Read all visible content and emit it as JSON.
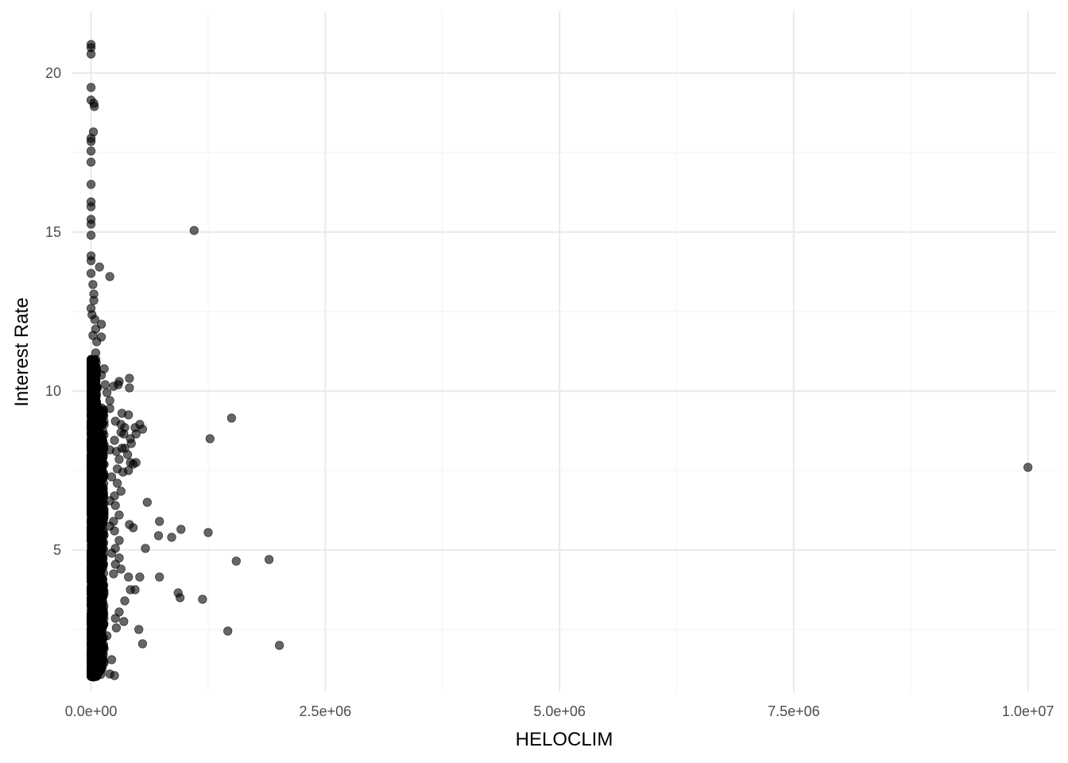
{
  "chart_data": {
    "type": "scatter",
    "xlabel": "HELOCLIM",
    "ylabel": "Interest Rate",
    "xlim": [
      -200000,
      10300000
    ],
    "ylim": [
      0.55,
      21.95
    ],
    "x_ticks": [
      0,
      2500000,
      5000000,
      7500000,
      10000000
    ],
    "x_tick_labels": [
      "0.0e+00",
      "2.5e+06",
      "5.0e+06",
      "7.5e+06",
      "1.0e+07"
    ],
    "y_ticks": [
      5,
      10,
      15,
      20
    ],
    "y_tick_labels": [
      "5",
      "10",
      "15",
      "20"
    ],
    "grid": true,
    "point_color": "#000000",
    "point_alpha": 0.6,
    "points": [
      [
        0,
        20.9
      ],
      [
        0,
        20.8
      ],
      [
        0,
        20.6
      ],
      [
        0,
        19.55
      ],
      [
        0,
        19.15
      ],
      [
        30000,
        19.05
      ],
      [
        35000,
        18.95
      ],
      [
        25000,
        18.15
      ],
      [
        0,
        17.95
      ],
      [
        0,
        17.85
      ],
      [
        0,
        17.55
      ],
      [
        0,
        17.2
      ],
      [
        0,
        16.5
      ],
      [
        0,
        15.95
      ],
      [
        0,
        15.8
      ],
      [
        0,
        15.4
      ],
      [
        0,
        15.25
      ],
      [
        0,
        14.9
      ],
      [
        0,
        14.25
      ],
      [
        0,
        14.1
      ],
      [
        0,
        13.7
      ],
      [
        20000,
        13.35
      ],
      [
        30000,
        13.05
      ],
      [
        30000,
        12.85
      ],
      [
        0,
        12.6
      ],
      [
        10000,
        12.4
      ],
      [
        40000,
        12.25
      ],
      [
        50000,
        11.95
      ],
      [
        20000,
        11.75
      ],
      [
        60000,
        11.55
      ],
      [
        50000,
        11.2
      ],
      [
        20000,
        10.95
      ],
      [
        1100000,
        15.05
      ],
      [
        200000,
        13.6
      ],
      [
        90000,
        13.9
      ],
      [
        110000,
        12.1
      ],
      [
        110000,
        11.7
      ],
      [
        140000,
        10.7
      ],
      [
        110000,
        10.5
      ],
      [
        70000,
        10.1
      ],
      [
        150000,
        10.2
      ],
      [
        170000,
        9.95
      ],
      [
        200000,
        9.7
      ],
      [
        200000,
        9.45
      ],
      [
        240000,
        10.15
      ],
      [
        290000,
        10.2
      ],
      [
        300000,
        10.3
      ],
      [
        410000,
        10.4
      ],
      [
        410000,
        10.1
      ],
      [
        330000,
        9.3
      ],
      [
        400000,
        9.25
      ],
      [
        260000,
        9.05
      ],
      [
        320000,
        8.95
      ],
      [
        360000,
        8.85
      ],
      [
        320000,
        8.7
      ],
      [
        350000,
        8.65
      ],
      [
        470000,
        8.85
      ],
      [
        520000,
        8.95
      ],
      [
        550000,
        8.8
      ],
      [
        480000,
        8.65
      ],
      [
        420000,
        8.5
      ],
      [
        430000,
        8.35
      ],
      [
        250000,
        8.45
      ],
      [
        200000,
        8.15
      ],
      [
        270000,
        8.1
      ],
      [
        300000,
        7.85
      ],
      [
        330000,
        8.2
      ],
      [
        360000,
        8.2
      ],
      [
        390000,
        8.0
      ],
      [
        420000,
        7.75
      ],
      [
        450000,
        7.7
      ],
      [
        480000,
        7.75
      ],
      [
        400000,
        7.5
      ],
      [
        340000,
        7.45
      ],
      [
        280000,
        7.55
      ],
      [
        220000,
        7.3
      ],
      [
        280000,
        7.1
      ],
      [
        320000,
        6.85
      ],
      [
        250000,
        6.7
      ],
      [
        200000,
        6.55
      ],
      [
        260000,
        6.4
      ],
      [
        300000,
        6.1
      ],
      [
        240000,
        5.9
      ],
      [
        200000,
        5.75
      ],
      [
        250000,
        5.6
      ],
      [
        300000,
        5.3
      ],
      [
        260000,
        5.05
      ],
      [
        220000,
        4.9
      ],
      [
        300000,
        4.75
      ],
      [
        260000,
        4.55
      ],
      [
        320000,
        4.4
      ],
      [
        240000,
        4.25
      ],
      [
        400000,
        4.15
      ],
      [
        520000,
        4.15
      ],
      [
        470000,
        3.75
      ],
      [
        420000,
        3.75
      ],
      [
        360000,
        3.4
      ],
      [
        300000,
        3.05
      ],
      [
        260000,
        2.85
      ],
      [
        350000,
        2.75
      ],
      [
        270000,
        2.55
      ],
      [
        510000,
        2.5
      ],
      [
        550000,
        2.05
      ],
      [
        250000,
        1.05
      ],
      [
        200000,
        1.1
      ],
      [
        220000,
        1.55
      ],
      [
        140000,
        1.9
      ],
      [
        170000,
        2.3
      ],
      [
        130000,
        2.7
      ],
      [
        110000,
        3.0
      ],
      [
        120000,
        3.3
      ],
      [
        90000,
        3.6
      ],
      [
        600000,
        6.5
      ],
      [
        730000,
        5.9
      ],
      [
        410000,
        5.8
      ],
      [
        450000,
        5.7
      ],
      [
        720000,
        5.45
      ],
      [
        860000,
        5.4
      ],
      [
        960000,
        5.65
      ],
      [
        1250000,
        5.55
      ],
      [
        580000,
        5.05
      ],
      [
        730000,
        4.15
      ],
      [
        930000,
        3.65
      ],
      [
        950000,
        3.5
      ],
      [
        1190000,
        3.45
      ],
      [
        1550000,
        4.65
      ],
      [
        1900000,
        4.7
      ],
      [
        1460000,
        2.45
      ],
      [
        2010000,
        2.0
      ],
      [
        1270000,
        8.5
      ],
      [
        1500000,
        9.15
      ],
      [
        10000000,
        7.6
      ]
    ]
  }
}
